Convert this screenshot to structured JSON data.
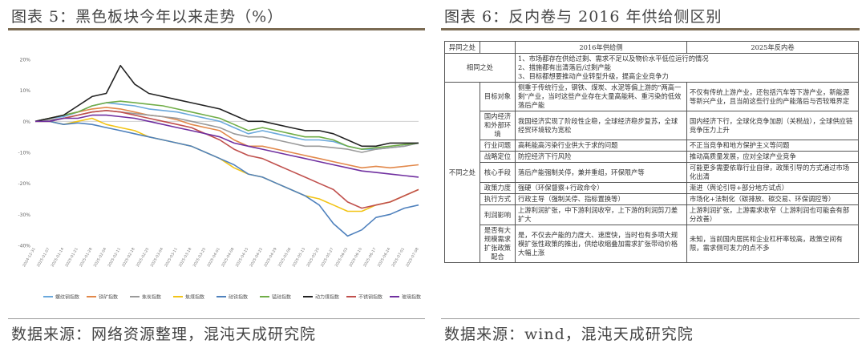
{
  "left": {
    "title": "图表 5：黑色板块今年以来走势（%）",
    "source": "数据来源：网络资源整理，混沌天成研究院"
  },
  "right": {
    "title": "图表 6：反内卷与 2016 年供给侧区别",
    "source": "数据来源：wind，混沌天成研究院"
  },
  "chart_data": {
    "type": "line",
    "title": "",
    "ylim": [
      -40,
      20
    ],
    "yticks": [
      "20%",
      "10%",
      "0%",
      "-10%",
      "-20%",
      "-30%",
      "-40%"
    ],
    "yticks_values": [
      20,
      10,
      0,
      -10,
      -20,
      -30,
      -40
    ],
    "x_dates": [
      "2024-12-31",
      "2025-01-07",
      "2025-01-14",
      "2025-01-21",
      "2025-01-28",
      "2025-02-04",
      "2025-02-11",
      "2025-02-18",
      "2025-02-25",
      "2025-03-04",
      "2025-03-11",
      "2025-03-18",
      "2025-03-25",
      "2025-04-01",
      "2025-04-08",
      "2025-04-15",
      "2025-04-22",
      "2025-04-29",
      "2025-05-06",
      "2025-05-13",
      "2025-05-20",
      "2025-05-27",
      "2025-06-03",
      "2025-06-10",
      "2025-06-17",
      "2025-06-24",
      "2025-07-01",
      "2025-07-08"
    ],
    "series": [
      {
        "name": "螺纹钢指数",
        "color": "#6aa8dc",
        "values": [
          0,
          1,
          1.5,
          3,
          5,
          6,
          5.5,
          5,
          4,
          3.5,
          3,
          2,
          1,
          0,
          -2,
          -4,
          -3,
          -4,
          -5,
          -6,
          -6,
          -6.5,
          -8,
          -9,
          -9,
          -8.5,
          -8,
          -7
        ]
      },
      {
        "name": "铁矿指数",
        "color": "#e2884a",
        "values": [
          0,
          1,
          2,
          3,
          4,
          4.5,
          4,
          3,
          2,
          1.5,
          0.5,
          -1,
          -2,
          -3,
          -6,
          -8,
          -8,
          -9,
          -10,
          -11,
          -12,
          -13,
          -14,
          -15,
          -14.5,
          -15,
          -14.5,
          -14
        ]
      },
      {
        "name": "焦炭指数",
        "color": "#9a9a9a",
        "values": [
          0,
          0.5,
          1,
          2,
          3,
          3.5,
          3,
          2.5,
          2,
          1.5,
          1,
          0,
          -1,
          -2,
          -4,
          -5,
          -5,
          -6,
          -7,
          -8,
          -8,
          -8.5,
          -9,
          -10,
          -9,
          -8.5,
          -8,
          -7
        ]
      },
      {
        "name": "焦煤指数",
        "color": "#f2c417",
        "values": [
          0,
          0,
          -1,
          0,
          1,
          -1,
          -2,
          -3,
          -5,
          -6,
          -7,
          -8,
          -10,
          -12,
          -15,
          -17,
          -18,
          -20,
          -22,
          -24,
          -25,
          -27,
          -29,
          -29,
          -27,
          -26,
          -24,
          -22
        ]
      },
      {
        "name": "硅铁指数",
        "color": "#4f81bd",
        "values": [
          0,
          0,
          -1,
          -0.5,
          -1,
          -2,
          -3,
          -4,
          -5,
          -6,
          -7,
          -8,
          -10,
          -12,
          -14,
          -17,
          -18,
          -20,
          -22,
          -24,
          -27,
          -33,
          -37,
          -35,
          -31,
          -30,
          -28,
          -27
        ]
      },
      {
        "name": "锰硅指数",
        "color": "#70ad47",
        "values": [
          0,
          1,
          2,
          3,
          5,
          6,
          6.5,
          6,
          5.5,
          5,
          4,
          3,
          2,
          1,
          -1,
          -3,
          -2,
          -3,
          -4,
          -5,
          -5,
          -6,
          -8,
          -9,
          -8.5,
          -8,
          -7.5,
          -7
        ]
      },
      {
        "name": "动力煤指数",
        "color": "#222222",
        "values": [
          0,
          1,
          2,
          5,
          8,
          9,
          18,
          12,
          9,
          8,
          7,
          6,
          5,
          4,
          2,
          0,
          0,
          -1,
          -2,
          -3,
          -3,
          -4,
          -6,
          -8,
          -8,
          -7,
          -7,
          -7
        ]
      },
      {
        "name": "不锈钢指数",
        "color": "#c0504d",
        "values": [
          0,
          0,
          1,
          2,
          3,
          3.5,
          3,
          2,
          1,
          0,
          -1,
          -2,
          -4,
          -6,
          -9,
          -11,
          -12,
          -14,
          -16,
          -18,
          -20,
          -22,
          -26,
          -28,
          -27,
          -26,
          -24,
          -22
        ]
      },
      {
        "name": "玻璃指数",
        "color": "#7030a0",
        "values": [
          0,
          0,
          1,
          1,
          2,
          2,
          1.5,
          1,
          0,
          -1,
          -2,
          -3,
          -4,
          -5,
          -7,
          -8,
          -9,
          -10,
          -11,
          -12,
          -13,
          -14,
          -15,
          -16,
          -16.5,
          -17,
          -17.5,
          -18
        ]
      }
    ],
    "legend_position": "bottom",
    "grid": false
  },
  "table": {
    "headers": [
      "异同之处",
      "",
      "2016年供给侧",
      "2025年反内卷"
    ],
    "same_label": "相同之处",
    "same_points": [
      "1、市场都存在供给过剩、需求不足以及物价水平低位运行的情况",
      "2、措施都有出清落后/过剩产能",
      "3、目标都想要推动产业转型升级，提高企业竞争力"
    ],
    "diff_label": "不同之处",
    "rows": [
      {
        "aspect": "目标对象",
        "y2016": "侧重于传统行业，钢铁、煤炭、水泥等偏上游的“两高一剩”产业，当时这些产业存在大量高能耗、重污染的低效落后产能",
        "y2025": "不仅有传统上游产业，还包括汽车等下游产业，新能源等新兴产业，且当前这些行业的产能落后与否较难界定"
      },
      {
        "aspect": "国内经济和外部环境",
        "y2016": "我国经济实现了阶段性企稳，全球经济稳步复苏，全球经贸环境较为宽松",
        "y2025": "国内经济下行，全球化竞争加剧（关税战），全球供应链竞争压力上升"
      },
      {
        "aspect": "行业问题",
        "y2016": "高耗能高污染行业供大于求的问题",
        "y2025": "不正当竞争和地方保护主义等问题"
      },
      {
        "aspect": "战略定位",
        "y2016": "防控经济下行风险",
        "y2025": "推动高质量发展，应对全球产业竞争"
      },
      {
        "aspect": "核心手段",
        "y2016": "落后产能强制关停，兼并重组，环保限产等",
        "y2025": "可能更多需要依靠行业自律，政策引导的方式通过市场化出清"
      },
      {
        "aspect": "政策力度",
        "y2016": "强硬（环保督察+行政命令）",
        "y2025": "渐进（舆论引导+部分地方试点）"
      },
      {
        "aspect": "执行方式",
        "y2016": "行政主导（强制关停、指标置换等）",
        "y2025": "市场化+法制化（碳排放、碳交易、环保调控等）"
      },
      {
        "aspect": "利润影响",
        "y2016": "上游利润扩张，中下游利润收窄，上下游的利润剪刀差扩大",
        "y2025": "上游利润扩张，上游需求收窄（上游利润也可能会有部分改善）"
      },
      {
        "aspect": "是否有大规模需求扩张政策配合",
        "y2016": "是，不仅去产能的力度大、速度快，当时也有多项大规模扩张性政策的推出，供给收缩叠加需求扩张带动价格大幅上涨",
        "y2025": "未知，当前国内居民和企业杠杆率较高，政策空间有限，需求侧可发力的点不多"
      }
    ]
  }
}
